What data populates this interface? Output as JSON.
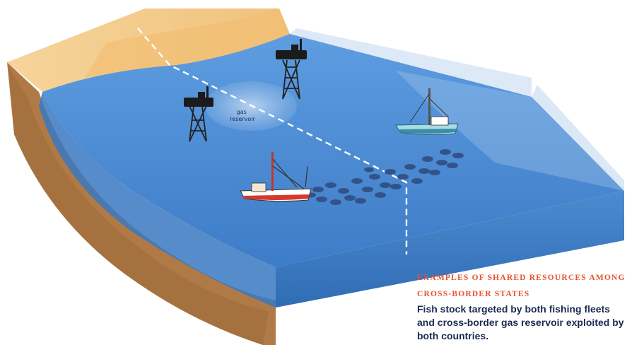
{
  "diagram": {
    "gas_label_line1": "gas",
    "gas_label_line2": "reservoir"
  },
  "caption": {
    "title_line1": "EXAMPLES OF SHARED RESOURCES AMONG",
    "title_line2": "CROSS-BORDER STATES",
    "body": "Fish stock targeted by both fishing fleets and cross-border gas reservoir exploited by both countries."
  },
  "colors": {
    "sand": "#f4c98a",
    "water": "#4f8fd3",
    "water_deep": "#3f7dc4",
    "seabed": "#b07a46",
    "caption_accent": "#e8512b",
    "caption_text": "#1a2a52"
  }
}
